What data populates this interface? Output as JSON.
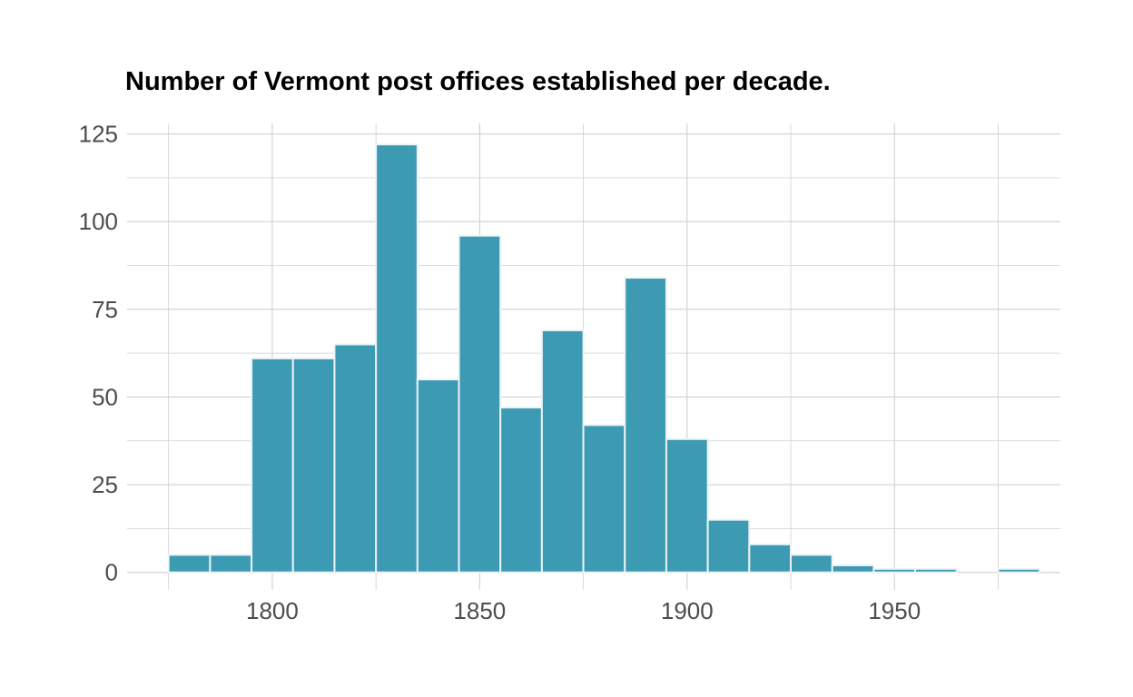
{
  "chart_data": {
    "type": "bar",
    "title": "Number of Vermont post offices established per decade.",
    "xlabel": "",
    "ylabel": "",
    "bin_width": 10,
    "bins": [
      {
        "start": 1775,
        "end": 1785,
        "value": 5
      },
      {
        "start": 1785,
        "end": 1795,
        "value": 5
      },
      {
        "start": 1795,
        "end": 1805,
        "value": 61
      },
      {
        "start": 1805,
        "end": 1815,
        "value": 61
      },
      {
        "start": 1815,
        "end": 1825,
        "value": 65
      },
      {
        "start": 1825,
        "end": 1835,
        "value": 122
      },
      {
        "start": 1835,
        "end": 1845,
        "value": 55
      },
      {
        "start": 1845,
        "end": 1855,
        "value": 96
      },
      {
        "start": 1855,
        "end": 1865,
        "value": 47
      },
      {
        "start": 1865,
        "end": 1875,
        "value": 69
      },
      {
        "start": 1875,
        "end": 1885,
        "value": 42
      },
      {
        "start": 1885,
        "end": 1895,
        "value": 84
      },
      {
        "start": 1895,
        "end": 1905,
        "value": 38
      },
      {
        "start": 1905,
        "end": 1915,
        "value": 15
      },
      {
        "start": 1915,
        "end": 1925,
        "value": 8
      },
      {
        "start": 1925,
        "end": 1935,
        "value": 5
      },
      {
        "start": 1935,
        "end": 1945,
        "value": 2
      },
      {
        "start": 1945,
        "end": 1955,
        "value": 1
      },
      {
        "start": 1955,
        "end": 1965,
        "value": 1
      },
      {
        "start": 1965,
        "end": 1975,
        "value": 0
      },
      {
        "start": 1975,
        "end": 1985,
        "value": 1
      }
    ],
    "xlim": [
      1765,
      1990
    ],
    "ylim": [
      -5,
      128
    ],
    "x_ticks": [
      1800,
      1850,
      1900,
      1950
    ],
    "x_minor_ticks": [
      1775,
      1825,
      1875,
      1925,
      1975
    ],
    "y_ticks": [
      0,
      25,
      50,
      75,
      100,
      125
    ],
    "y_minor_ticks": [
      12.5,
      37.5,
      62.5,
      87.5,
      112.5
    ],
    "grid": true,
    "legend": "none",
    "bar_color": "#3c9ab2",
    "bar_outline_color": "#ecf3f5",
    "grid_color": "#d0d0d0"
  }
}
